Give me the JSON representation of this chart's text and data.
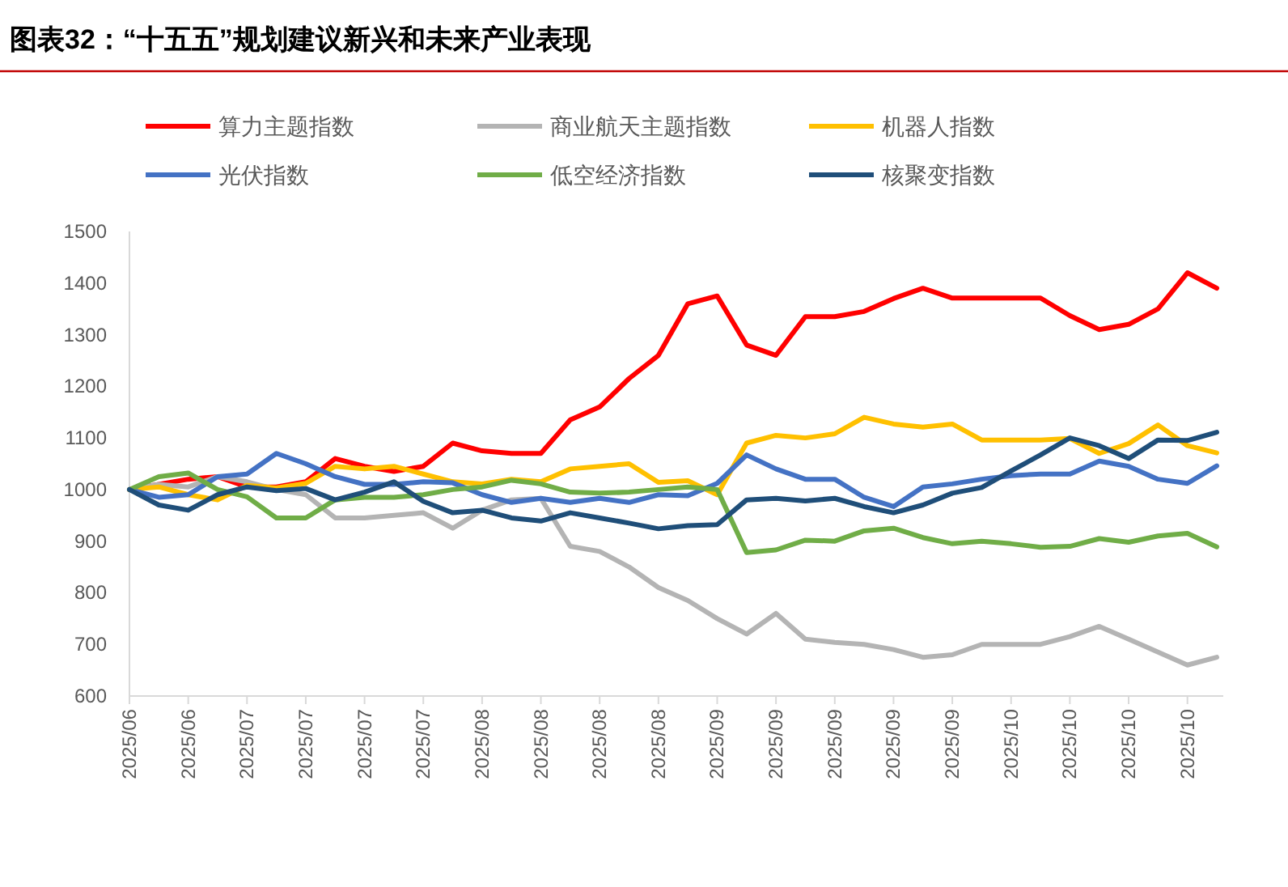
{
  "chart_data": {
    "type": "line",
    "title": "图表32：“十五五”规划建议新兴和未来产业表现",
    "categories": [
      "2025/06",
      null,
      "2025/06",
      null,
      "2025/07",
      null,
      "2025/07",
      null,
      "2025/07",
      null,
      "2025/07",
      null,
      "2025/08",
      null,
      "2025/08",
      null,
      "2025/08",
      null,
      "2025/08",
      null,
      "2025/09",
      null,
      "2025/09",
      null,
      "2025/09",
      null,
      "2025/09",
      null,
      "2025/09",
      null,
      "2025/10",
      null,
      "2025/10",
      null,
      "2025/10",
      null,
      "2025/10",
      null
    ],
    "series": [
      {
        "name": "算力主题指数",
        "color": "#ff0000",
        "values": [
          1000,
          1010,
          1020,
          1025,
          1005,
          1005,
          1015,
          1060,
          1045,
          1035,
          1045,
          1090,
          1075,
          1070,
          1070,
          1135,
          1160,
          1215,
          1260,
          1360,
          1375,
          1280,
          1260,
          1335,
          1335,
          1345,
          1370,
          1390,
          1371,
          1371,
          1371,
          1371,
          1337,
          1310,
          1320,
          1350,
          1420,
          1390
        ]
      },
      {
        "name": "商业航天主题指数",
        "color": "#b4b4b4",
        "values": [
          1000,
          1010,
          1005,
          1025,
          1015,
          1000,
          990,
          945,
          945,
          950,
          955,
          925,
          960,
          980,
          983,
          890,
          880,
          850,
          810,
          785,
          750,
          720,
          760,
          710,
          704,
          700,
          690,
          675,
          680,
          700,
          700,
          700,
          715,
          735,
          710,
          685,
          660,
          675
        ]
      },
      {
        "name": "机器人指数",
        "color": "#ffc000",
        "values": [
          1000,
          1005,
          990,
          980,
          1008,
          1003,
          1012,
          1045,
          1040,
          1045,
          1030,
          1015,
          1011,
          1020,
          1015,
          1040,
          1045,
          1050,
          1014,
          1017,
          990,
          1090,
          1105,
          1100,
          1108,
          1140,
          1127,
          1121,
          1127,
          1096,
          1096,
          1096,
          1099,
          1070,
          1089,
          1125,
          1085,
          1071
        ]
      },
      {
        "name": "光伏指数",
        "color": "#4472c4",
        "values": [
          1000,
          985,
          990,
          1025,
          1030,
          1070,
          1050,
          1025,
          1010,
          1010,
          1015,
          1013,
          990,
          975,
          983,
          975,
          983,
          975,
          990,
          988,
          1012,
          1067,
          1040,
          1020,
          1020,
          985,
          967,
          1005,
          1011,
          1020,
          1027,
          1030,
          1030,
          1055,
          1045,
          1020,
          1012,
          1046
        ]
      },
      {
        "name": "低空经济指数",
        "color": "#70ad47",
        "values": [
          1000,
          1025,
          1032,
          1000,
          986,
          945,
          945,
          980,
          985,
          985,
          990,
          1000,
          1005,
          1018,
          1011,
          995,
          993,
          995,
          1000,
          1005,
          1000,
          878,
          883,
          902,
          900,
          920,
          925,
          907,
          895,
          900,
          895,
          888,
          890,
          905,
          898,
          910,
          915,
          889
        ]
      },
      {
        "name": "核聚变指数",
        "color": "#1f4e79",
        "values": [
          1000,
          970,
          960,
          990,
          1005,
          998,
          1002,
          980,
          995,
          1015,
          977,
          955,
          960,
          945,
          939,
          955,
          945,
          935,
          924,
          930,
          932,
          980,
          983,
          978,
          983,
          967,
          955,
          970,
          993,
          1004,
          1036,
          1067,
          1100,
          1085,
          1060,
          1096,
          1095,
          1111
        ]
      }
    ],
    "ylim": [
      600,
      1500
    ],
    "yticks": [
      600,
      700,
      800,
      900,
      1000,
      1100,
      1200,
      1300,
      1400,
      1500
    ],
    "legend": "top"
  }
}
